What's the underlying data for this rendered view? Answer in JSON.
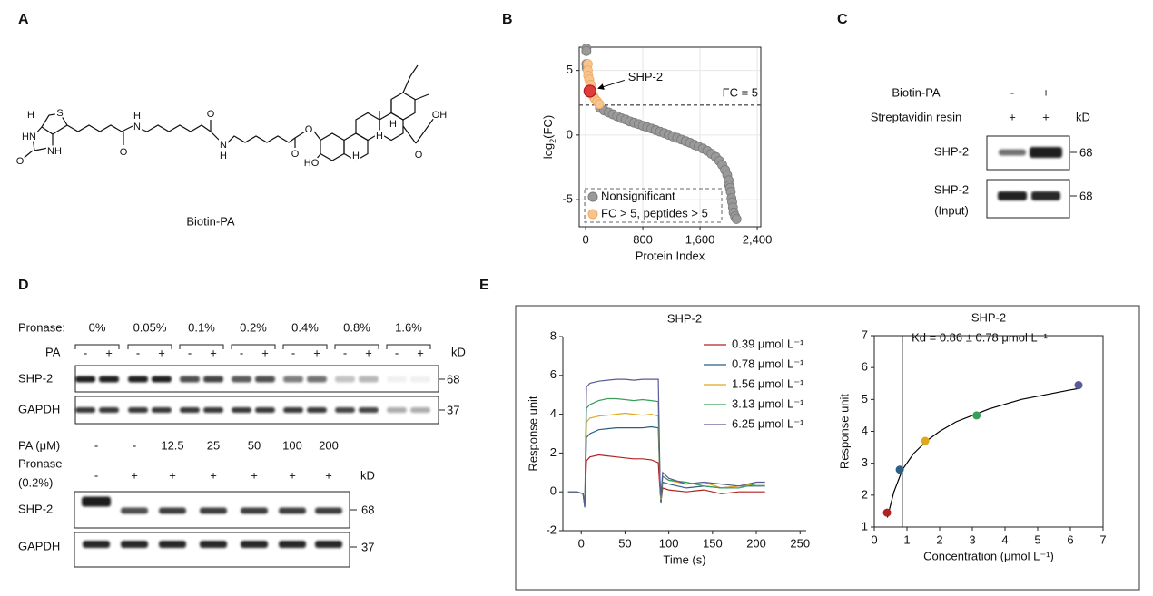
{
  "panel_labels": [
    "A",
    "B",
    "C",
    "D",
    "E"
  ],
  "panel_a": {
    "atom_labels": [
      "H",
      "S",
      "HN",
      "NH",
      "O",
      "H",
      "N",
      "O",
      "O",
      "N",
      "H",
      "O",
      "O",
      "HO",
      "H",
      "H",
      "H",
      "OH",
      "O"
    ],
    "caption": "Biotin-PA"
  },
  "panel_c": {
    "rows": [
      {
        "label": "Biotin-PA",
        "lanes": [
          "-",
          "+"
        ]
      },
      {
        "label": "Streptavidin resin",
        "lanes": [
          "+",
          "+"
        ]
      }
    ],
    "unit": "kD",
    "blots": [
      {
        "label": [
          "SHP-2"
        ],
        "size": "68"
      },
      {
        "label": [
          "SHP-2",
          "(Input)"
        ],
        "size": "68"
      }
    ]
  },
  "panel_d": {
    "top": {
      "row_label": "Pronase:",
      "concentrations": [
        "0%",
        "0.05%",
        "0.1%",
        "0.2%",
        "0.4%",
        "0.8%",
        "1.6%"
      ],
      "pa_label": "PA",
      "pa_lanes": [
        "-",
        "+"
      ],
      "unit": "kD",
      "blots": [
        {
          "label": "SHP-2",
          "size": "68"
        },
        {
          "label": "GAPDH",
          "size": "37"
        }
      ]
    },
    "bottom": {
      "pa_label": "PA (μM)",
      "pa_values": [
        "-",
        "-",
        "12.5",
        "25",
        "50",
        "100",
        "200"
      ],
      "pronase_label": [
        "Pronase",
        "(0.2%)"
      ],
      "pronase_values": [
        "-",
        "+",
        "+",
        "+",
        "+",
        "+",
        "+"
      ],
      "unit": "kD",
      "blots": [
        {
          "label": "SHP-2",
          "size": "68"
        },
        {
          "label": "GAPDH",
          "size": "37"
        }
      ]
    }
  },
  "chart_data": [
    {
      "type": "scatter",
      "ylabel_parts": [
        "log",
        "2",
        "(FC)"
      ],
      "xlabel": "Protein Index",
      "xlim": [
        -90,
        2450
      ],
      "ylim": [
        -7.1,
        6.8
      ],
      "xticks": [
        0,
        800,
        {
          "value": 1600,
          "label": "1,600"
        },
        {
          "value": 2400,
          "label": "2,400"
        }
      ],
      "yticks": [
        -5,
        0,
        5
      ],
      "grid": true,
      "legend": "bottom-left",
      "series": [
        {
          "name": "Nonsignificant",
          "color": "#9a9a9a",
          "x": [
            10,
            10,
            10,
            15,
            200,
            260,
            320,
            380,
            440,
            500,
            560,
            620,
            680,
            740,
            800,
            860,
            920,
            980,
            1040,
            1100,
            1160,
            1220,
            1280,
            1340,
            1400,
            1460,
            1520,
            1580,
            1640,
            1700,
            1760,
            1820,
            1870,
            1910,
            1950,
            1980,
            2000,
            2010,
            2020,
            2030,
            2040,
            2050,
            2060,
            2070,
            2090,
            2110
          ],
          "values": [
            6.7,
            6.5,
            5.5,
            5.2,
            2.1,
            1.9,
            1.75,
            1.6,
            1.45,
            1.3,
            1.2,
            1.05,
            0.95,
            0.85,
            0.72,
            0.6,
            0.5,
            0.38,
            0.26,
            0.15,
            0.02,
            -0.1,
            -0.22,
            -0.35,
            -0.48,
            -0.6,
            -0.75,
            -0.9,
            -1.05,
            -1.22,
            -1.45,
            -1.7,
            -2.0,
            -2.3,
            -2.7,
            -3.1,
            -3.5,
            -3.9,
            -4.1,
            -4.4,
            -4.9,
            -5.2,
            -5.6,
            -6.0,
            -6.3,
            -6.5
          ]
        },
        {
          "name": "FC > 5, peptides > 5",
          "color": "#f7c48e",
          "x": [
            30,
            30,
            35,
            50,
            70,
            90,
            110,
            130,
            160,
            190
          ],
          "values": [
            5.5,
            5.0,
            4.6,
            4.3,
            3.9,
            3.2,
            3.0,
            2.8,
            2.6,
            2.4
          ]
        }
      ],
      "highlight": {
        "label": "SHP-2",
        "x": 60,
        "value": 3.4,
        "color": "#e03c3c"
      },
      "threshold": {
        "label": "FC = 5",
        "value": 2.32
      }
    },
    {
      "type": "line",
      "title": "SHP-2",
      "xlabel": "Time (s)",
      "ylabel": "Response unit",
      "xlim": [
        -21,
        257
      ],
      "ylim": [
        -2,
        8
      ],
      "xticks": [
        0,
        50,
        100,
        150,
        200,
        250
      ],
      "yticks": [
        -2,
        0,
        2,
        4,
        6,
        8
      ],
      "legend": "top-right",
      "x": [
        -15,
        -5,
        2,
        4,
        6,
        10,
        20,
        30,
        40,
        50,
        60,
        70,
        80,
        88,
        90,
        91,
        93,
        100,
        120,
        140,
        160,
        180,
        200,
        210
      ],
      "series": [
        {
          "name": "0.39 μmol L⁻¹",
          "color": "#b22222",
          "values": [
            0,
            0,
            -0.1,
            -0.6,
            1.6,
            1.8,
            1.9,
            1.85,
            1.8,
            1.75,
            1.7,
            1.7,
            1.65,
            1.5,
            0.1,
            -0.5,
            0.2,
            0.1,
            0.0,
            0.1,
            -0.1,
            0.0,
            0.0,
            0.0
          ]
        },
        {
          "name": "0.78 μmol L⁻¹",
          "color": "#2b5f86",
          "values": [
            0,
            0,
            -0.1,
            -0.7,
            2.8,
            3.0,
            3.2,
            3.25,
            3.3,
            3.3,
            3.3,
            3.3,
            3.35,
            3.3,
            0.3,
            -0.6,
            0.5,
            0.4,
            0.2,
            0.3,
            0.2,
            0.3,
            0.3,
            0.3
          ]
        },
        {
          "name": "1.56 μmol L⁻¹",
          "color": "#e0a820",
          "values": [
            0,
            0,
            -0.1,
            -0.7,
            3.6,
            3.8,
            3.9,
            3.95,
            4.0,
            4.05,
            4.0,
            3.95,
            4.0,
            3.9,
            0.4,
            -0.4,
            0.8,
            0.6,
            0.4,
            0.5,
            0.2,
            0.3,
            0.4,
            0.4
          ]
        },
        {
          "name": "3.13 μmol L⁻¹",
          "color": "#3a9e5a",
          "values": [
            0,
            0,
            -0.1,
            -0.8,
            4.3,
            4.5,
            4.7,
            4.8,
            4.8,
            4.75,
            4.7,
            4.75,
            4.7,
            4.65,
            0.5,
            -0.3,
            0.8,
            0.6,
            0.5,
            0.3,
            0.2,
            0.2,
            0.4,
            0.4
          ]
        },
        {
          "name": "6.25 μmol L⁻¹",
          "color": "#5a5a96",
          "values": [
            0,
            0,
            -0.1,
            -0.8,
            5.4,
            5.6,
            5.7,
            5.75,
            5.8,
            5.8,
            5.75,
            5.8,
            5.8,
            5.8,
            0.6,
            -0.2,
            1.0,
            0.7,
            0.4,
            0.5,
            0.4,
            0.3,
            0.5,
            0.5
          ]
        }
      ]
    },
    {
      "type": "scatter",
      "title": "SHP-2",
      "annotation": "Kd = 0.86 ± 0.78 μmol L⁻¹",
      "xlabel": "Concentration (μmol L⁻¹)",
      "ylabel": "Response unit",
      "xlim": [
        0,
        7
      ],
      "ylim": [
        1,
        7
      ],
      "xticks": [
        0,
        1,
        2,
        3,
        4,
        5,
        6,
        7
      ],
      "yticks": [
        1,
        2,
        3,
        4,
        5,
        6,
        7
      ],
      "x": [
        0.39,
        0.78,
        1.56,
        3.13,
        6.25
      ],
      "values": [
        1.45,
        2.8,
        3.7,
        4.5,
        5.45
      ],
      "colors": [
        "#b22222",
        "#2b5f86",
        "#e0a820",
        "#3a9e5a",
        "#5a5a96"
      ],
      "kd": 0.86,
      "fit": {
        "x": [
          0.4,
          0.6,
          0.86,
          1.2,
          1.6,
          2,
          2.5,
          3,
          3.5,
          4,
          4.5,
          5,
          5.5,
          6,
          6.3
        ],
        "values": [
          1.3,
          2.1,
          2.8,
          3.3,
          3.7,
          4.0,
          4.3,
          4.5,
          4.7,
          4.85,
          5.0,
          5.1,
          5.2,
          5.3,
          5.35
        ],
        "color": "#000000"
      }
    }
  ]
}
